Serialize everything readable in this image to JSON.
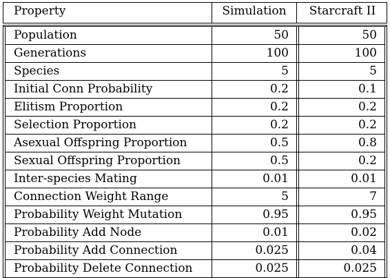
{
  "table": {
    "headers": [
      "Property",
      "Simulation",
      "Starcraft II"
    ],
    "rows": [
      {
        "property": "Population",
        "simulation": "50",
        "starcraft": "50"
      },
      {
        "property": "Generations",
        "simulation": "100",
        "starcraft": "100"
      },
      {
        "property": "Species",
        "simulation": "5",
        "starcraft": "5"
      },
      {
        "property": "Initial Conn Probability",
        "simulation": "0.2",
        "starcraft": "0.1"
      },
      {
        "property": "Elitism Proportion",
        "simulation": "0.2",
        "starcraft": "0.2"
      },
      {
        "property": "Selection Proportion",
        "simulation": "0.2",
        "starcraft": "0.2"
      },
      {
        "property": "Asexual Offspring Proportion",
        "simulation": "0.5",
        "starcraft": "0.8"
      },
      {
        "property": "Sexual Offspring Proportion",
        "simulation": "0.5",
        "starcraft": "0.2"
      },
      {
        "property": "Inter-species Mating",
        "simulation": "0.01",
        "starcraft": "0.01"
      },
      {
        "property": "Connection Weight Range",
        "simulation": "5",
        "starcraft": "7"
      },
      {
        "property": "Probability Weight Mutation",
        "simulation": "0.95",
        "starcraft": "0.95"
      },
      {
        "property": "Probability Add Node",
        "simulation": "0.01",
        "starcraft": "0.02"
      },
      {
        "property": "Probability Add Connection",
        "simulation": "0.025",
        "starcraft": "0.04"
      },
      {
        "property": "Probability Delete Connection",
        "simulation": "0.025",
        "starcraft": "0.025"
      }
    ]
  }
}
